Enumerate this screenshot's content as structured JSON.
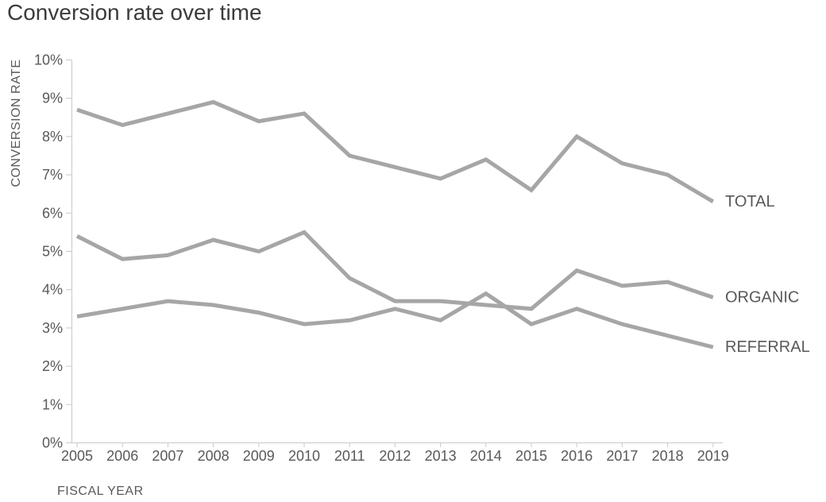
{
  "chart_data": {
    "type": "line",
    "title": "Conversion rate over time",
    "xlabel": "FISCAL YEAR",
    "ylabel": "CONVERSION RATE",
    "x": [
      2005,
      2006,
      2007,
      2008,
      2009,
      2010,
      2011,
      2012,
      2013,
      2014,
      2015,
      2016,
      2017,
      2018,
      2019
    ],
    "series": [
      {
        "name": "TOTAL",
        "values": [
          8.7,
          8.3,
          8.6,
          8.9,
          8.4,
          8.6,
          7.5,
          7.2,
          6.9,
          7.4,
          6.6,
          8.0,
          7.3,
          7.0,
          6.3
        ]
      },
      {
        "name": "ORGANIC",
        "values": [
          5.4,
          4.8,
          4.9,
          5.3,
          5.0,
          5.5,
          4.3,
          3.7,
          3.7,
          3.6,
          3.5,
          4.5,
          4.1,
          4.2,
          3.8
        ]
      },
      {
        "name": "REFERRAL",
        "values": [
          3.3,
          3.5,
          3.7,
          3.6,
          3.4,
          3.1,
          3.2,
          3.5,
          3.2,
          3.9,
          3.1,
          3.5,
          3.1,
          2.8,
          2.5
        ]
      }
    ],
    "ylim": [
      0,
      10
    ],
    "y_tick_step": 1,
    "y_tick_suffix": "%",
    "y_tick_labels": [
      "0%",
      "1%",
      "2%",
      "3%",
      "4%",
      "5%",
      "6%",
      "7%",
      "8%",
      "9%",
      "10%"
    ],
    "grid": false,
    "legend_position": "line-end-labels-right",
    "colors": {
      "line": "#a6a6a6",
      "axis": "#c9c9c9",
      "label": "#595959",
      "title": "#3b3b3b"
    }
  }
}
